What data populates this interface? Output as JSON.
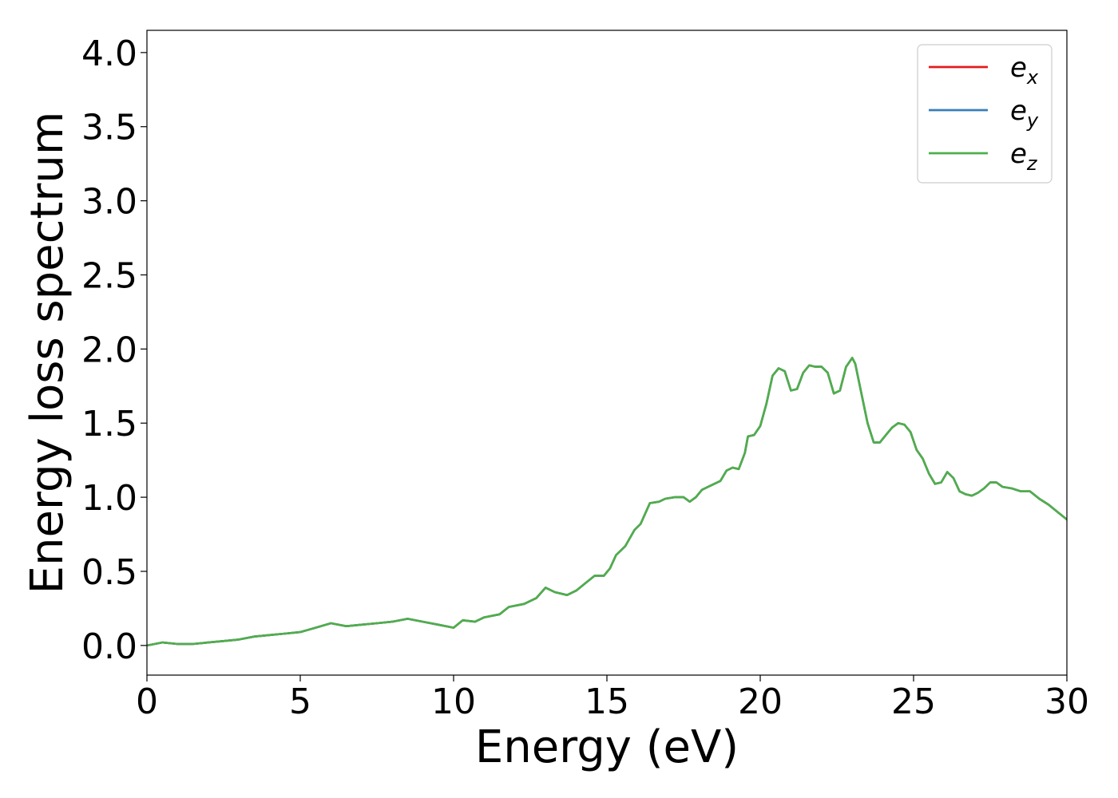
{
  "chart_data": {
    "type": "line",
    "title": "",
    "xlabel": "Energy (eV)",
    "ylabel": "Energy loss spectrum",
    "xlim": [
      0,
      30
    ],
    "ylim": [
      -0.2,
      4.15
    ],
    "xticks": [
      0,
      5,
      10,
      15,
      20,
      25,
      30
    ],
    "xtick_labels": [
      "0",
      "5",
      "10",
      "15",
      "20",
      "25",
      "30"
    ],
    "yticks": [
      0.0,
      0.5,
      1.0,
      1.5,
      2.0,
      2.5,
      3.0,
      3.5,
      4.0
    ],
    "ytick_labels": [
      "0.0",
      "0.5",
      "1.0",
      "1.5",
      "2.0",
      "2.5",
      "3.0",
      "3.5",
      "4.0"
    ],
    "grid": false,
    "legend_position": "top-right",
    "x": [
      0,
      0.5,
      1,
      1.5,
      2,
      2.5,
      3,
      3.5,
      4,
      4.5,
      5,
      5.5,
      6,
      6.5,
      7,
      7.5,
      8,
      8.5,
      9,
      9.5,
      10,
      10.3,
      10.7,
      11,
      11.5,
      11.8,
      12.3,
      12.7,
      13,
      13.3,
      13.7,
      14,
      14.3,
      14.6,
      14.9,
      15.1,
      15.3,
      15.6,
      15.9,
      16.1,
      16.4,
      16.7,
      16.9,
      17.2,
      17.5,
      17.7,
      17.9,
      18.1,
      18.4,
      18.7,
      18.9,
      19.1,
      19.3,
      19.5,
      19.6,
      19.8,
      20,
      20.2,
      20.4,
      20.6,
      20.8,
      21,
      21.2,
      21.4,
      21.6,
      21.8,
      22,
      22.2,
      22.4,
      22.6,
      22.8,
      23,
      23.1,
      23.3,
      23.5,
      23.7,
      23.9,
      24.1,
      24.3,
      24.5,
      24.7,
      24.9,
      25.1,
      25.3,
      25.5,
      25.7,
      25.9,
      26.1,
      26.3,
      26.5,
      26.7,
      26.9,
      27.1,
      27.3,
      27.5,
      27.7,
      27.9,
      28.2,
      28.5,
      28.8,
      29.1,
      29.4,
      29.7,
      30
    ],
    "series": [
      {
        "name": "e_x",
        "color": "#e41a1c",
        "values": [
          0.0,
          0.02,
          0.01,
          0.01,
          0.02,
          0.03,
          0.04,
          0.06,
          0.07,
          0.08,
          0.09,
          0.12,
          0.15,
          0.13,
          0.14,
          0.15,
          0.16,
          0.18,
          0.16,
          0.14,
          0.12,
          0.17,
          0.16,
          0.19,
          0.21,
          0.26,
          0.28,
          0.32,
          0.39,
          0.36,
          0.34,
          0.37,
          0.42,
          0.47,
          0.47,
          0.52,
          0.61,
          0.67,
          0.78,
          0.82,
          0.96,
          0.97,
          0.99,
          1.0,
          1.0,
          0.97,
          1.0,
          1.05,
          1.08,
          1.11,
          1.18,
          1.2,
          1.19,
          1.3,
          1.41,
          1.42,
          1.48,
          1.63,
          1.82,
          1.87,
          1.85,
          1.72,
          1.73,
          1.84,
          1.89,
          1.88,
          1.88,
          1.84,
          1.7,
          1.72,
          1.88,
          1.94,
          1.9,
          1.7,
          1.5,
          1.37,
          1.37,
          1.42,
          1.47,
          1.5,
          1.49,
          1.44,
          1.32,
          1.26,
          1.16,
          1.09,
          1.1,
          1.17,
          1.13,
          1.04,
          1.02,
          1.01,
          1.03,
          1.06,
          1.1,
          1.1,
          1.07,
          1.06,
          1.04,
          1.04,
          0.99,
          0.95,
          0.9,
          0.85
        ]
      },
      {
        "name": "e_y",
        "color": "#377eb8",
        "values": [
          0.0,
          0.02,
          0.01,
          0.01,
          0.02,
          0.03,
          0.04,
          0.06,
          0.07,
          0.08,
          0.09,
          0.12,
          0.15,
          0.13,
          0.14,
          0.15,
          0.16,
          0.18,
          0.16,
          0.14,
          0.12,
          0.17,
          0.16,
          0.19,
          0.21,
          0.26,
          0.28,
          0.32,
          0.39,
          0.36,
          0.34,
          0.37,
          0.42,
          0.47,
          0.47,
          0.52,
          0.61,
          0.67,
          0.78,
          0.82,
          0.96,
          0.97,
          0.99,
          1.0,
          1.0,
          0.97,
          1.0,
          1.05,
          1.08,
          1.11,
          1.18,
          1.2,
          1.19,
          1.3,
          1.41,
          1.42,
          1.48,
          1.63,
          1.82,
          1.87,
          1.85,
          1.72,
          1.73,
          1.84,
          1.89,
          1.88,
          1.88,
          1.84,
          1.7,
          1.72,
          1.88,
          1.94,
          1.9,
          1.7,
          1.5,
          1.37,
          1.37,
          1.42,
          1.47,
          1.5,
          1.49,
          1.44,
          1.32,
          1.26,
          1.16,
          1.09,
          1.1,
          1.17,
          1.13,
          1.04,
          1.02,
          1.01,
          1.03,
          1.06,
          1.1,
          1.1,
          1.07,
          1.06,
          1.04,
          1.04,
          0.99,
          0.95,
          0.9,
          0.85
        ]
      },
      {
        "name": "e_z",
        "color": "#4daf4a",
        "values": [
          0.0,
          0.02,
          0.01,
          0.01,
          0.02,
          0.03,
          0.04,
          0.06,
          0.07,
          0.08,
          0.09,
          0.12,
          0.15,
          0.13,
          0.14,
          0.15,
          0.16,
          0.18,
          0.16,
          0.14,
          0.12,
          0.17,
          0.16,
          0.19,
          0.21,
          0.26,
          0.28,
          0.32,
          0.39,
          0.36,
          0.34,
          0.37,
          0.42,
          0.47,
          0.47,
          0.52,
          0.61,
          0.67,
          0.78,
          0.82,
          0.96,
          0.97,
          0.99,
          1.0,
          1.0,
          0.97,
          1.0,
          1.05,
          1.08,
          1.11,
          1.18,
          1.2,
          1.19,
          1.3,
          1.41,
          1.42,
          1.48,
          1.63,
          1.82,
          1.87,
          1.85,
          1.72,
          1.73,
          1.84,
          1.89,
          1.88,
          1.88,
          1.84,
          1.7,
          1.72,
          1.88,
          1.94,
          1.9,
          1.7,
          1.5,
          1.37,
          1.37,
          1.42,
          1.47,
          1.5,
          1.49,
          1.44,
          1.32,
          1.26,
          1.16,
          1.09,
          1.1,
          1.17,
          1.13,
          1.04,
          1.02,
          1.01,
          1.03,
          1.06,
          1.1,
          1.1,
          1.07,
          1.06,
          1.04,
          1.04,
          0.99,
          0.95,
          0.9,
          0.85
        ]
      }
    ],
    "legend": [
      {
        "base": "e",
        "sub": "x",
        "color": "#e41a1c"
      },
      {
        "base": "e",
        "sub": "y",
        "color": "#377eb8"
      },
      {
        "base": "e",
        "sub": "z",
        "color": "#4daf4a"
      }
    ]
  }
}
